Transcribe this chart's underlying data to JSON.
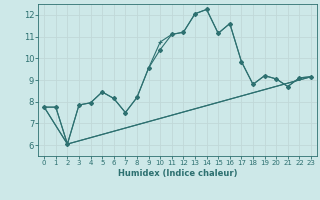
{
  "xlabel": "Humidex (Indice chaleur)",
  "background_color": "#cde8e8",
  "grid_color": "#c0d8d8",
  "line_color": "#2d7070",
  "xlim": [
    -0.5,
    23.5
  ],
  "ylim": [
    5.5,
    12.5
  ],
  "xticks": [
    0,
    1,
    2,
    3,
    4,
    5,
    6,
    7,
    8,
    9,
    10,
    11,
    12,
    13,
    14,
    15,
    16,
    17,
    18,
    19,
    20,
    21,
    22,
    23
  ],
  "yticks": [
    6,
    7,
    8,
    9,
    10,
    11,
    12
  ],
  "line1_x": [
    0,
    1,
    2,
    3,
    4,
    5,
    6,
    7,
    8,
    9,
    10,
    11,
    12,
    13,
    14,
    15,
    16,
    17,
    18,
    19,
    20,
    21,
    22,
    23
  ],
  "line1_y": [
    7.75,
    7.75,
    6.05,
    7.85,
    7.95,
    8.45,
    8.15,
    7.5,
    8.2,
    9.55,
    10.75,
    11.1,
    11.2,
    12.05,
    12.25,
    11.15,
    11.6,
    9.85,
    8.8,
    9.2,
    9.05,
    8.7,
    9.1,
    9.15
  ],
  "line2_x": [
    0,
    1,
    2,
    3,
    4,
    5,
    6,
    7,
    8,
    9,
    10,
    11,
    12,
    13,
    14,
    15,
    16,
    17,
    18,
    19,
    20,
    21,
    22,
    23
  ],
  "line2_y": [
    7.75,
    7.75,
    6.05,
    7.85,
    7.95,
    8.45,
    8.15,
    7.5,
    8.2,
    9.55,
    10.4,
    11.1,
    11.2,
    12.05,
    12.25,
    11.15,
    11.6,
    9.85,
    8.8,
    9.2,
    9.05,
    8.7,
    9.1,
    9.15
  ],
  "line3_x": [
    0,
    2,
    23
  ],
  "line3_y": [
    7.75,
    6.05,
    9.15
  ],
  "line4_x": [
    0,
    2,
    23
  ],
  "line4_y": [
    7.75,
    6.05,
    9.15
  ]
}
